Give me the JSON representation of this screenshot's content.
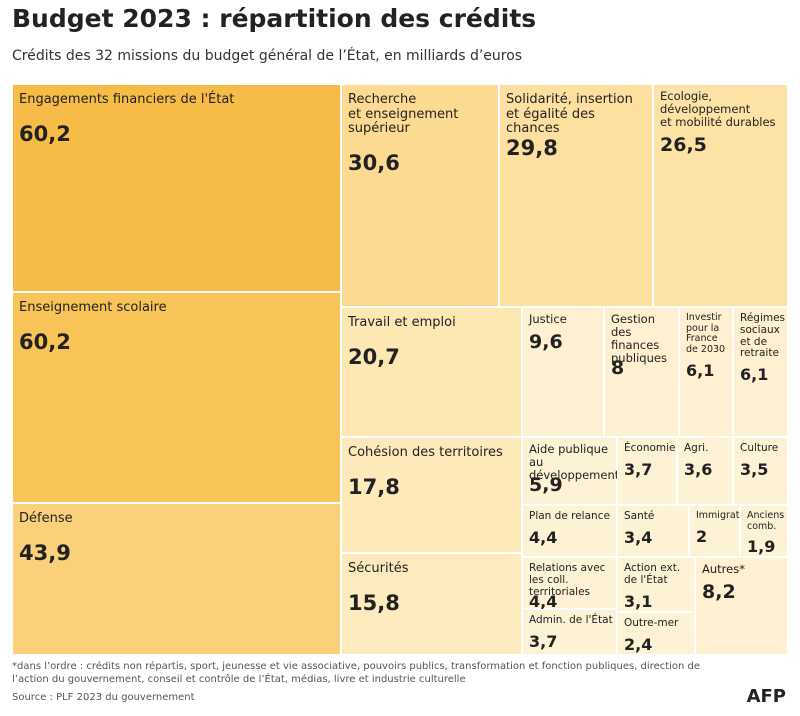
{
  "chart_data": {
    "type": "treemap",
    "title": "Budget 2023 : répartition des crédits",
    "subtitle": "Crédits des 32 missions du budget général de l’État, en milliards d’euros",
    "categories": [
      "Engagements financiers de l'État",
      "Enseignement scolaire",
      "Défense",
      "Recherche\net enseignement\nsupérieur",
      "Solidarité, insertion\net égalité des chances",
      "Ecologie,\ndéveloppement\net mobilité durables",
      "Travail et emploi",
      "Justice",
      "Gestion\ndes finances\npubliques",
      "Investir\npour la\nFrance\nde 2030",
      "Régimes\nsociaux\net de\nretraite",
      "Cohésion des territoires",
      "Sécurités",
      "Aide publique\nau développement",
      "Économie",
      "Agri.",
      "Culture",
      "Plan de relance",
      "Santé",
      "Immigration",
      "Anciens\ncomb.",
      "Relations avec\nles coll. territoriales",
      "Admin. de l'État",
      "Action ext.\nde l'État",
      "Outre-mer",
      "Autres*"
    ],
    "values": [
      60.2,
      60.2,
      43.9,
      30.6,
      29.8,
      26.5,
      20.7,
      9.6,
      8,
      6.1,
      6.1,
      17.8,
      15.8,
      5.9,
      3.7,
      3.6,
      3.5,
      4.4,
      3.4,
      2,
      1.9,
      4.4,
      3.7,
      3.1,
      2.4,
      8.2
    ],
    "value_labels": [
      "60,2",
      "60,2",
      "43,9",
      "30,6",
      "29,8",
      "26,5",
      "20,7",
      "9,6",
      "8",
      "6,1",
      "6,1",
      "17,8",
      "15,8",
      "5,9",
      "3,7",
      "3,6",
      "3,5",
      "4,4",
      "3,4",
      "2",
      "1,9",
      "4,4",
      "3,7",
      "3,1",
      "2,4",
      "8,2"
    ],
    "colors": [
      "#f7bb48",
      "#f8c457",
      "#fad07a",
      "#fcda92",
      "#fddfa0",
      "#fde2a6",
      "#fde7b3",
      "#fef0d0",
      "#fef0d0",
      "#fef0d0",
      "#fef0d0",
      "#fde9b9",
      "#fdebbf",
      "#fef2d6",
      "#fef2d6",
      "#fef2d6",
      "#fef2d6",
      "#fef2d6",
      "#fef2d6",
      "#fef2d6",
      "#fef2d6",
      "#fef2d6",
      "#fef2d6",
      "#fef2d6",
      "#fef2d6",
      "#fef0d0"
    ],
    "note": "*dans l’ordre : crédits non répartis, sport, jeunesse et vie associative, pouvoirs publics, transformation et fonction publiques, direction de l’action du gouvernement, conseil et contrôle de l’État, médias, livre et industrie culturelle",
    "source": "Source : PLF 2023 du gouvernement",
    "credit": "AFP"
  }
}
